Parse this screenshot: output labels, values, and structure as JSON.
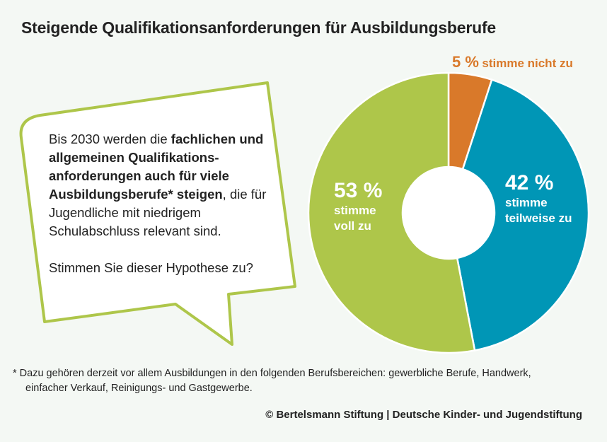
{
  "title": "Steigende Qualifikationsanforderungen für Ausbildungsberufe",
  "bubble": {
    "line1_normal": "Bis 2030 werden die ",
    "line1_bold": "fachlichen und allgemeinen Qualifikations-anforderungen auch für viele Ausbildungsberufe* steigen",
    "line_rest": ", die für Jugendliche mit niedrigem Schulabschluss relevant sind.",
    "question": "Stimmen Sie dieser Hypothese zu?"
  },
  "chart_data": {
    "type": "pie",
    "donut": true,
    "categories": [
      "stimme nicht zu",
      "stimme teilweise zu",
      "stimme voll zu"
    ],
    "values": [
      5,
      42,
      53
    ],
    "unit": "%",
    "colors": [
      "#d9792a",
      "#0096b6",
      "#aec64a"
    ],
    "labels": {
      "nicht": {
        "pct": "5 %",
        "text": "stimme nicht zu"
      },
      "teilweise": {
        "pct": "42 %",
        "text1": "stimme",
        "text2": "teilweise zu"
      },
      "voll": {
        "pct": "53 %",
        "text1": "stimme",
        "text2": "voll zu"
      }
    }
  },
  "footnote": {
    "line1": "* Dazu gehören derzeit vor allem Ausbildungen in den folgenden Berufsbereichen: gewerbliche Berufe, Handwerk,",
    "line2": "einfacher Verkauf, Reinigungs- und Gastgewerbe."
  },
  "source": "© Bertelsmann Stiftung | Deutsche Kinder- und Jugendstiftung"
}
